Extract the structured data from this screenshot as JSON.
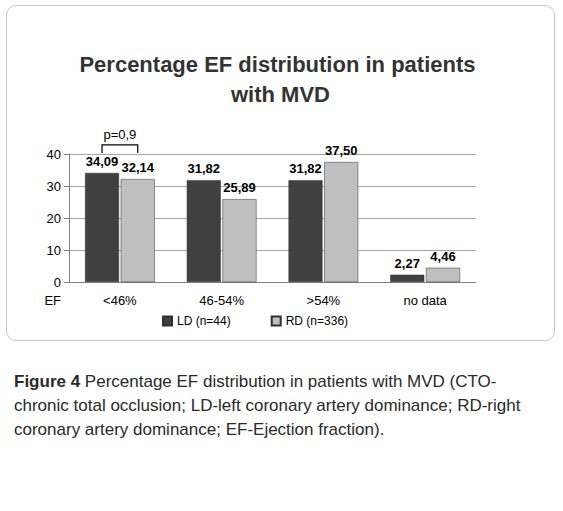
{
  "chart_data": {
    "type": "bar",
    "title": "Percentage EF distribution in patients with MVD",
    "x_label": "EF",
    "categories": [
      "<46%",
      "46-54%",
      ">54%",
      "no data"
    ],
    "series": [
      {
        "name": "LD (n=44)",
        "color": "#404040",
        "values": [
          34.09,
          31.82,
          31.82,
          2.27
        ],
        "value_labels": [
          "34,09",
          "31,82",
          "31,82",
          "2,27"
        ]
      },
      {
        "name": "RD (n=336)",
        "color": "#bfbfbf",
        "values": [
          32.14,
          25.89,
          37.5,
          4.46
        ],
        "value_labels": [
          "32,14",
          "25,89",
          "37,50",
          "4,46"
        ]
      }
    ],
    "ylim": [
      0,
      40
    ],
    "yticks": [
      0,
      10,
      20,
      30,
      40
    ],
    "grid": true,
    "legend": "bottom",
    "data_labels": true,
    "annotations": [
      {
        "text": "p=0,9",
        "category": "<46%"
      }
    ],
    "caption": {
      "label": "Figure 4",
      "text": "Percentage EF distribution in patients with MVD (CTO-chronic total occlusion; LD-left coronary artery dominance; RD-right coronary artery dominance; EF-Ejection fraction)."
    }
  }
}
